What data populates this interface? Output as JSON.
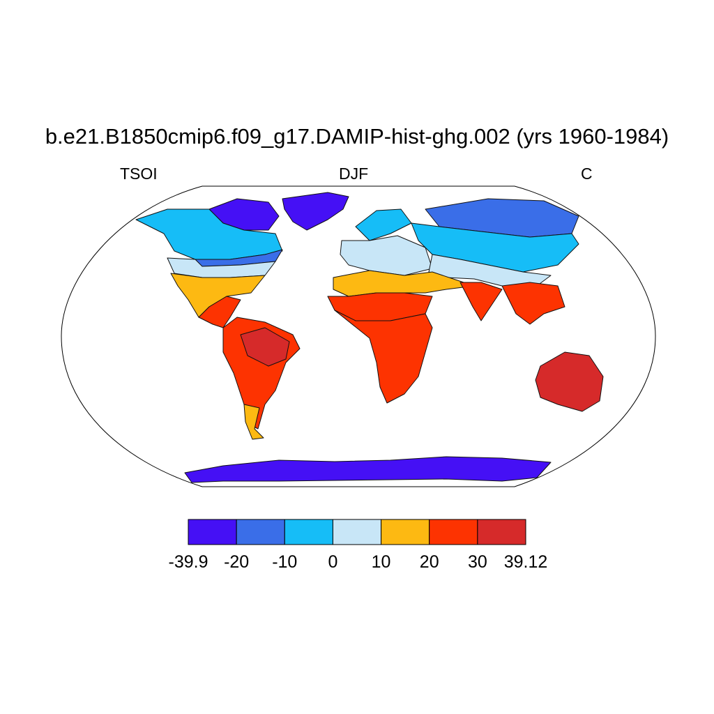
{
  "title": "b.e21.B1850cmip6.f09_g17.DAMIP-hist-ghg.002 (yrs 1960-1984)",
  "subtitles": {
    "left": "TSOI",
    "center": "DJF",
    "right": "C"
  },
  "projection": "robinson",
  "colorbar": {
    "colors": [
      "#4510f5",
      "#3a6ee8",
      "#16bdf7",
      "#c8e6f7",
      "#fdb912",
      "#fd3301",
      "#d62a2a"
    ],
    "labels": [
      "-39.9",
      "-20",
      "-10",
      "0",
      "10",
      "20",
      "30",
      "39.12"
    ]
  },
  "regions": [
    {
      "name": "Greenland",
      "level": 0
    },
    {
      "name": "Canada Arctic",
      "level": 0
    },
    {
      "name": "Alaska/Canada",
      "level": 2
    },
    {
      "name": "Canada South",
      "level": 1
    },
    {
      "name": "USA North",
      "level": 3
    },
    {
      "name": "USA South / Mexico",
      "level": 4
    },
    {
      "name": "Central America",
      "level": 5
    },
    {
      "name": "South America",
      "level": 5
    },
    {
      "name": "Amazon",
      "level": 6
    },
    {
      "name": "Patagonia",
      "level": 4
    },
    {
      "name": "Scandinavia",
      "level": 2
    },
    {
      "name": "Europe",
      "level": 3
    },
    {
      "name": "Siberia",
      "level": 1
    },
    {
      "name": "Russia",
      "level": 2
    },
    {
      "name": "Central Asia",
      "level": 3
    },
    {
      "name": "North Africa / Middle East",
      "level": 4
    },
    {
      "name": "Sahel",
      "level": 5
    },
    {
      "name": "Central/South Africa",
      "level": 5
    },
    {
      "name": "India",
      "level": 5
    },
    {
      "name": "Southeast Asia",
      "level": 5
    },
    {
      "name": "Australia",
      "level": 6
    },
    {
      "name": "Antarctica coast",
      "level": 0
    }
  ]
}
